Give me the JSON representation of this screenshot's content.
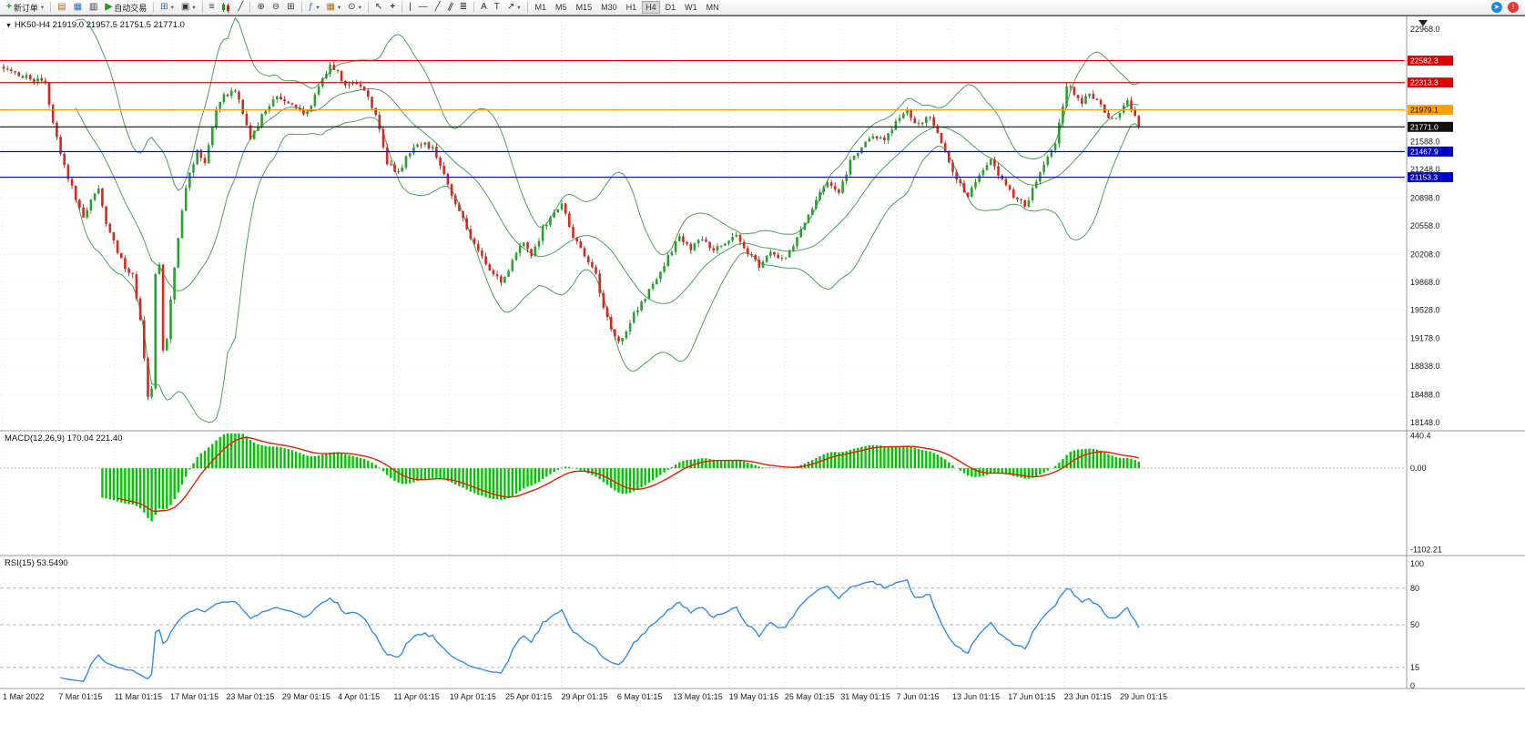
{
  "toolbar": {
    "new_order_label": "新订单",
    "auto_trading_label": "自动交易",
    "text_tool_label": "A",
    "label_tool_label": "T",
    "timeframes": [
      "M1",
      "M5",
      "M15",
      "M30",
      "H1",
      "H4",
      "D1",
      "W1",
      "MN"
    ],
    "active_timeframe": "H4"
  },
  "chart": {
    "symbol_ohlc": "HK50-H4  21919.0 21957.5 21751.5 21771.0",
    "price_min": 18148.0,
    "price_max": 22968.0,
    "price_ticks": [
      "22968.0",
      "21588.0",
      "21248.0",
      "20898.0",
      "20558.0",
      "20208.0",
      "19868.0",
      "19528.0",
      "19178.0",
      "18838.0",
      "18488.0",
      "18148.0"
    ],
    "hlines": [
      {
        "label": "22582.3",
        "price": 22582.3,
        "color": "#dd0000",
        "bg": "#dd0000",
        "fg": "#ffffff"
      },
      {
        "label": "22313.3",
        "price": 22313.3,
        "color": "#dd0000",
        "bg": "#dd0000",
        "fg": "#ffffff"
      },
      {
        "label": "21979.1",
        "price": 21979.1,
        "color": "#ff9a00",
        "bg": "#ffa200",
        "fg": "#000000"
      },
      {
        "label": "21771.0",
        "price": 21771.0,
        "color": "#111111",
        "bg": "#111111",
        "fg": "#ffffff"
      },
      {
        "label": "21467.9",
        "price": 21467.9,
        "color": "#0000cc",
        "bg": "#0000cc",
        "fg": "#ffffff"
      },
      {
        "label": "21153.3",
        "price": 21153.3,
        "color": "#0000cc",
        "bg": "#0000cc",
        "fg": "#ffffff"
      }
    ]
  },
  "macd": {
    "label": "MACD(12,26,9) 170.04 221.40",
    "ticks": [
      "440.4",
      "0.00",
      "-1102.21"
    ],
    "scale_max": 470,
    "scale_min": -1160
  },
  "rsi": {
    "label": "RSI(15) 53.5490",
    "ticks": [
      "100",
      "80",
      "50",
      "15",
      "0"
    ],
    "levels": [
      80,
      50,
      15
    ]
  },
  "x_axis": [
    "1 Mar 2022",
    "7 Mar 01:15",
    "11 Mar 01:15",
    "17 Mar 01:15",
    "23 Mar 01:15",
    "29 Mar 01:15",
    "4 Apr 01:15",
    "11 Apr 01:15",
    "19 Apr 01:15",
    "25 Apr 01:15",
    "29 Apr 01:15",
    "6 May 01:15",
    "13 May 01:15",
    "19 May 01:15",
    "25 May 01:15",
    "31 May 01:15",
    "7 Jun 01:15",
    "13 Jun 01:15",
    "17 Jun 01:15",
    "23 Jun 01:15",
    "29 Jun 01:15"
  ],
  "chart_data": {
    "type": "candlestick",
    "symbol": "HK50-",
    "timeframe": "H4",
    "bar_count": 300,
    "ohlc_last": {
      "open": 21919.0,
      "high": 21957.5,
      "low": 21751.5,
      "close": 21771.0
    },
    "indicators": [
      {
        "name": "Bollinger Bands",
        "period": 20,
        "deviation": 2,
        "color": "#4e9e5f"
      },
      {
        "name": "MACD",
        "fast": 12,
        "slow": 26,
        "signal": 9,
        "histogram_color": "#00c400",
        "signal_color": "#dd2200",
        "current": [
          170.04,
          221.4
        ]
      },
      {
        "name": "RSI",
        "period": 15,
        "color": "#2e8ee6",
        "current": 53.549
      }
    ],
    "close_anchors": [
      [
        0,
        22500
      ],
      [
        4,
        22420
      ],
      [
        8,
        22350
      ],
      [
        11,
        22300
      ],
      [
        13,
        21850
      ],
      [
        15,
        21430
      ],
      [
        18,
        21020
      ],
      [
        21,
        20650
      ],
      [
        23,
        20850
      ],
      [
        25,
        21000
      ],
      [
        27,
        20550
      ],
      [
        30,
        20250
      ],
      [
        32,
        20050
      ],
      [
        34,
        19950
      ],
      [
        36,
        19400
      ],
      [
        37,
        18950
      ],
      [
        38,
        18470
      ],
      [
        39,
        18560
      ],
      [
        40,
        19950
      ],
      [
        41,
        20100
      ],
      [
        42,
        19000
      ],
      [
        43,
        19200
      ],
      [
        44,
        19650
      ],
      [
        46,
        20400
      ],
      [
        48,
        21050
      ],
      [
        51,
        21480
      ],
      [
        53,
        21300
      ],
      [
        56,
        22000
      ],
      [
        58,
        22150
      ],
      [
        61,
        22230
      ],
      [
        63,
        21950
      ],
      [
        65,
        21620
      ],
      [
        68,
        21900
      ],
      [
        72,
        22150
      ],
      [
        76,
        22020
      ],
      [
        80,
        21930
      ],
      [
        83,
        22280
      ],
      [
        86,
        22520
      ],
      [
        88,
        22450
      ],
      [
        90,
        22260
      ],
      [
        93,
        22320
      ],
      [
        96,
        22120
      ],
      [
        98,
        21900
      ],
      [
        101,
        21320
      ],
      [
        104,
        21210
      ],
      [
        107,
        21460
      ],
      [
        110,
        21580
      ],
      [
        113,
        21500
      ],
      [
        116,
        21180
      ],
      [
        119,
        20850
      ],
      [
        122,
        20520
      ],
      [
        125,
        20230
      ],
      [
        128,
        20020
      ],
      [
        131,
        19860
      ],
      [
        134,
        20120
      ],
      [
        137,
        20380
      ],
      [
        139,
        20160
      ],
      [
        142,
        20520
      ],
      [
        145,
        20750
      ],
      [
        147,
        20820
      ],
      [
        150,
        20420
      ],
      [
        153,
        20180
      ],
      [
        156,
        19950
      ],
      [
        158,
        19580
      ],
      [
        160,
        19320
      ],
      [
        162,
        19130
      ],
      [
        164,
        19260
      ],
      [
        166,
        19480
      ],
      [
        169,
        19700
      ],
      [
        172,
        19920
      ],
      [
        175,
        20180
      ],
      [
        178,
        20420
      ],
      [
        181,
        20280
      ],
      [
        184,
        20400
      ],
      [
        187,
        20240
      ],
      [
        190,
        20360
      ],
      [
        193,
        20460
      ],
      [
        196,
        20210
      ],
      [
        199,
        20080
      ],
      [
        202,
        20260
      ],
      [
        205,
        20140
      ],
      [
        208,
        20320
      ],
      [
        211,
        20580
      ],
      [
        214,
        20880
      ],
      [
        217,
        21090
      ],
      [
        220,
        20980
      ],
      [
        223,
        21340
      ],
      [
        226,
        21500
      ],
      [
        229,
        21690
      ],
      [
        232,
        21580
      ],
      [
        235,
        21840
      ],
      [
        238,
        21960
      ],
      [
        241,
        21790
      ],
      [
        244,
        21890
      ],
      [
        246,
        21690
      ],
      [
        249,
        21340
      ],
      [
        252,
        21060
      ],
      [
        254,
        20930
      ],
      [
        257,
        21150
      ],
      [
        260,
        21340
      ],
      [
        263,
        21140
      ],
      [
        266,
        20930
      ],
      [
        269,
        20790
      ],
      [
        271,
        21010
      ],
      [
        274,
        21340
      ],
      [
        277,
        21580
      ],
      [
        280,
        22260
      ],
      [
        282,
        22190
      ],
      [
        284,
        22050
      ],
      [
        286,
        22200
      ],
      [
        288,
        22090
      ],
      [
        290,
        21950
      ],
      [
        292,
        21850
      ],
      [
        294,
        21960
      ],
      [
        296,
        22110
      ],
      [
        298,
        21880
      ],
      [
        299,
        21771
      ]
    ]
  }
}
